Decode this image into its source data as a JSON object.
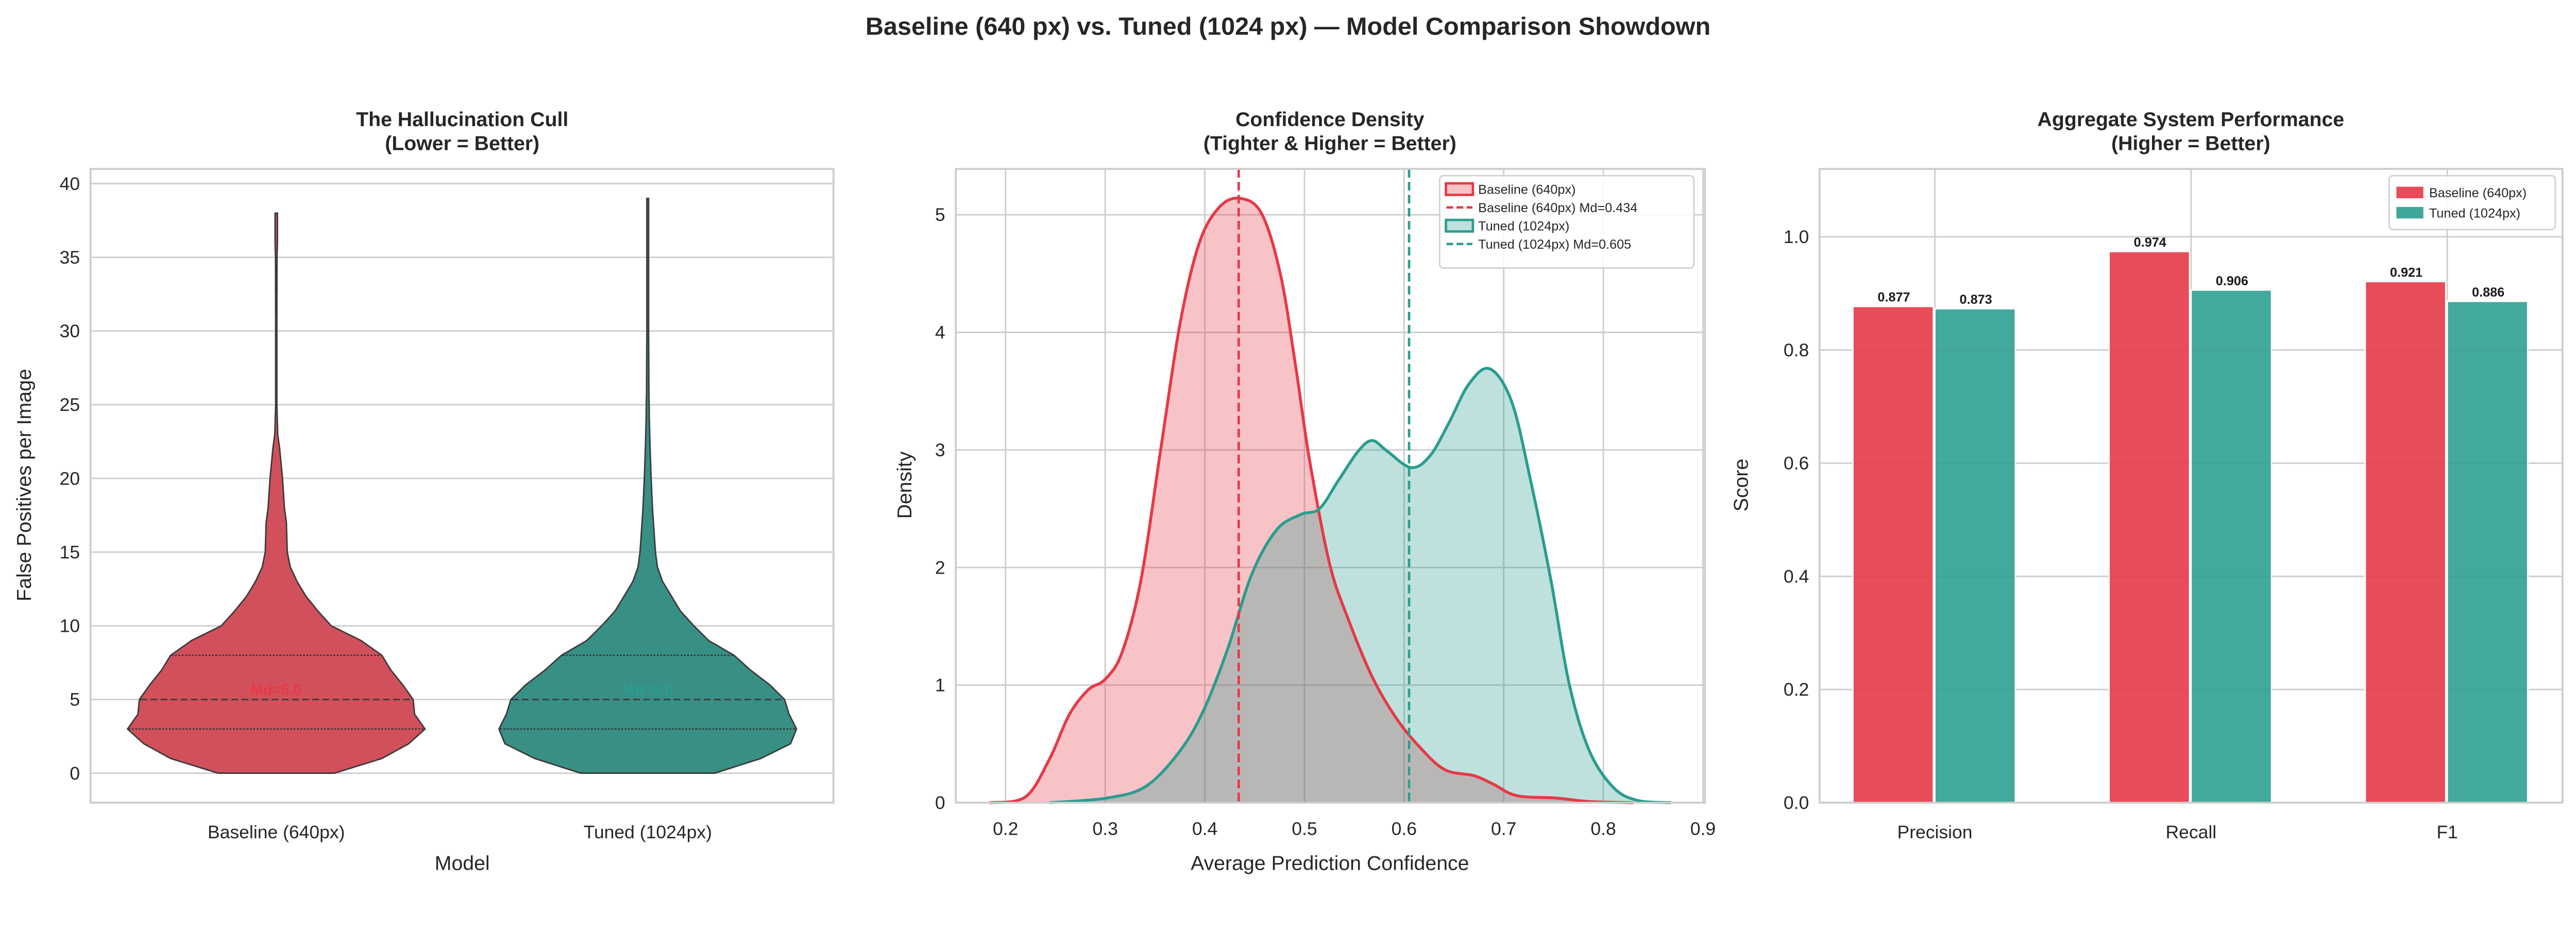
{
  "suptitle": "Baseline (640 px) vs. Tuned (1024 px) — Model Comparison Showdown",
  "colors": {
    "baseline": "#e63946",
    "tuned": "#2a9d8f",
    "baseline_violin": "#d1505b",
    "tuned_violin": "#388f84",
    "grid": "#cccccc"
  },
  "chart_data": [
    {
      "type": "violin",
      "title": "The Hallucination Cull\n(Lower = Better)",
      "title_lines": [
        "The Hallucination Cull",
        "(Lower = Better)"
      ],
      "xlabel": "Model",
      "ylabel": "False Positives per Image",
      "categories": [
        "Baseline (640px)",
        "Tuned (1024px)"
      ],
      "ylim": [
        -2,
        41
      ],
      "yticks": [
        0,
        5,
        10,
        15,
        20,
        25,
        30,
        35,
        40
      ],
      "grid": true,
      "series": [
        {
          "category": "Baseline (640px)",
          "color": "#d1505b",
          "min": 0,
          "max": 38,
          "q1": 3,
          "median": 5,
          "q3": 8,
          "median_label": "Md=5.0",
          "density_profile": [
            [
              0,
              0.39
            ],
            [
              1,
              0.71
            ],
            [
              2,
              0.89
            ],
            [
              3,
              1.0
            ],
            [
              4,
              0.93
            ],
            [
              5,
              0.92
            ],
            [
              6,
              0.85
            ],
            [
              7,
              0.77
            ],
            [
              8,
              0.71
            ],
            [
              9,
              0.57
            ],
            [
              10,
              0.37
            ],
            [
              11,
              0.28
            ],
            [
              12,
              0.2
            ],
            [
              13,
              0.14
            ],
            [
              14,
              0.094
            ],
            [
              15,
              0.074
            ],
            [
              16,
              0.071
            ],
            [
              17,
              0.068
            ],
            [
              18,
              0.055
            ],
            [
              20,
              0.042
            ],
            [
              22,
              0.023
            ],
            [
              23,
              0.01
            ],
            [
              25,
              0.004
            ],
            [
              30,
              0.004
            ],
            [
              35,
              0.005
            ],
            [
              36,
              0.008
            ],
            [
              38,
              0.008
            ]
          ]
        },
        {
          "category": "Tuned (1024px)",
          "color": "#388f84",
          "min": 0,
          "max": 39,
          "q1": 3,
          "median": 5,
          "q3": 8,
          "median_label": "Md=5.0",
          "density_profile": [
            [
              0,
              0.45
            ],
            [
              1,
              0.76
            ],
            [
              2,
              0.96
            ],
            [
              3,
              1.0
            ],
            [
              4,
              0.95
            ],
            [
              5,
              0.92
            ],
            [
              6,
              0.82
            ],
            [
              7,
              0.69
            ],
            [
              8,
              0.58
            ],
            [
              9,
              0.41
            ],
            [
              10,
              0.31
            ],
            [
              11,
              0.22
            ],
            [
              12,
              0.16
            ],
            [
              13,
              0.1
            ],
            [
              14,
              0.065
            ],
            [
              15,
              0.052
            ],
            [
              16,
              0.045
            ],
            [
              18,
              0.032
            ],
            [
              20,
              0.023
            ],
            [
              22,
              0.016
            ],
            [
              24,
              0.011
            ],
            [
              26,
              0.008
            ],
            [
              30,
              0.006
            ],
            [
              35,
              0.006
            ],
            [
              39,
              0.006
            ]
          ]
        }
      ]
    },
    {
      "type": "area",
      "title_lines": [
        "Confidence Density",
        "(Tighter & Higher = Better)"
      ],
      "xlabel": "Average Prediction Confidence",
      "ylabel": "Density",
      "xlim": [
        0.15,
        0.902
      ],
      "ylim": [
        0,
        5.39
      ],
      "xticks": [
        0.2,
        0.3,
        0.4,
        0.5,
        0.6,
        0.7,
        0.8,
        0.9
      ],
      "yticks": [
        0,
        1,
        2,
        3,
        4,
        5
      ],
      "grid": true,
      "legend_position": "top-right",
      "series": [
        {
          "name": "Baseline (640px)",
          "color": "#e63946",
          "median": 0.434,
          "median_legend": "Baseline (640px) Md=0.434",
          "points": [
            [
              0.184,
              0
            ],
            [
              0.22,
              0.05
            ],
            [
              0.244,
              0.37
            ],
            [
              0.264,
              0.75
            ],
            [
              0.283,
              0.96
            ],
            [
              0.3,
              1.05
            ],
            [
              0.317,
              1.28
            ],
            [
              0.336,
              1.9
            ],
            [
              0.356,
              3.02
            ],
            [
              0.375,
              4.07
            ],
            [
              0.394,
              4.75
            ],
            [
              0.414,
              5.06
            ],
            [
              0.435,
              5.14
            ],
            [
              0.457,
              5.01
            ],
            [
              0.476,
              4.49
            ],
            [
              0.491,
              3.72
            ],
            [
              0.505,
              2.92
            ],
            [
              0.525,
              2.04
            ],
            [
              0.544,
              1.56
            ],
            [
              0.568,
              1.07
            ],
            [
              0.592,
              0.72
            ],
            [
              0.616,
              0.47
            ],
            [
              0.641,
              0.28
            ],
            [
              0.67,
              0.23
            ],
            [
              0.689,
              0.16
            ],
            [
              0.713,
              0.06
            ],
            [
              0.752,
              0.04
            ],
            [
              0.786,
              0.01
            ],
            [
              0.83,
              0
            ]
          ]
        },
        {
          "name": "Tuned (1024px)",
          "color": "#2a9d8f",
          "median": 0.605,
          "median_legend": "Tuned (1024px) Md=0.605",
          "points": [
            [
              0.244,
              0
            ],
            [
              0.302,
              0.04
            ],
            [
              0.341,
              0.14
            ],
            [
              0.375,
              0.44
            ],
            [
              0.399,
              0.79
            ],
            [
              0.423,
              1.31
            ],
            [
              0.447,
              1.94
            ],
            [
              0.472,
              2.32
            ],
            [
              0.496,
              2.45
            ],
            [
              0.515,
              2.5
            ],
            [
              0.534,
              2.74
            ],
            [
              0.554,
              2.99
            ],
            [
              0.568,
              3.08
            ],
            [
              0.583,
              2.99
            ],
            [
              0.607,
              2.85
            ],
            [
              0.626,
              2.95
            ],
            [
              0.645,
              3.23
            ],
            [
              0.665,
              3.56
            ],
            [
              0.686,
              3.69
            ],
            [
              0.708,
              3.41
            ],
            [
              0.727,
              2.74
            ],
            [
              0.747,
              1.91
            ],
            [
              0.766,
              1.0
            ],
            [
              0.786,
              0.44
            ],
            [
              0.81,
              0.13
            ],
            [
              0.834,
              0.02
            ],
            [
              0.868,
              0
            ]
          ]
        }
      ]
    },
    {
      "type": "bar",
      "title_lines": [
        "Aggregate System Performance",
        "(Higher = Better)"
      ],
      "xlabel": "",
      "ylabel": "Score",
      "categories": [
        "Precision",
        "Recall",
        "F1"
      ],
      "ylim": [
        0,
        1.12
      ],
      "yticks": [
        0.0,
        0.2,
        0.4,
        0.6,
        0.8,
        1.0
      ],
      "grid": true,
      "legend_position": "top-right",
      "series": [
        {
          "name": "Baseline (640px)",
          "color": "#e63946",
          "values": [
            0.877,
            0.974,
            0.921
          ],
          "labels": [
            "0.877",
            "0.974",
            "0.921"
          ]
        },
        {
          "name": "Tuned (1024px)",
          "color": "#2a9d8f",
          "values": [
            0.873,
            0.906,
            0.886
          ],
          "labels": [
            "0.873",
            "0.906",
            "0.886"
          ]
        }
      ]
    }
  ]
}
